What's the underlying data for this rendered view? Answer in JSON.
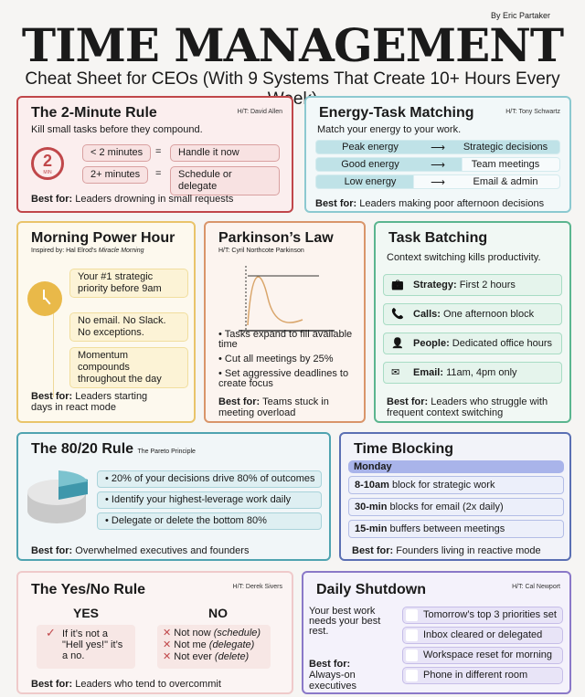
{
  "header": {
    "byline": "By Eric Partaker",
    "title": "TIME MANAGEMENT",
    "subtitle": "Cheat Sheet for CEOs (With 9 Systems That Create 10+ Hours Every Week)"
  },
  "best_for_label": "Best for:",
  "two_minute": {
    "title": "The 2-Minute Rule",
    "ht": "H/T: David Allen",
    "tagline": "Kill small tasks before they compound.",
    "icon_text": "2",
    "icon_sub": "MIN",
    "rows": [
      {
        "left": "< 2 minutes",
        "eq": "=",
        "right": "Handle it now"
      },
      {
        "left": "2+ minutes",
        "eq": "=",
        "right": "Schedule or delegate"
      }
    ],
    "best": "Leaders drowning in small requests",
    "color": "#c0474a"
  },
  "energy": {
    "title": "Energy-Task Matching",
    "ht": "H/T: Tony Schwartz",
    "tagline": "Match your energy to your work.",
    "arrow": "⟶",
    "rows": [
      {
        "energy": "Peak energy",
        "task": "Strategic decisions",
        "level": 1
      },
      {
        "energy": "Good energy",
        "task": "Team meetings",
        "level": 0.6
      },
      {
        "energy": "Low energy",
        "task": "Email & admin",
        "level": 0.4
      }
    ],
    "best": "Leaders making poor afternoon decisions",
    "color": "#8cc9d0"
  },
  "morning": {
    "title": "Morning Power Hour",
    "inspired": "Inspired by: Hal Elrod's ",
    "inspired_book": "Miracle Morning",
    "items": [
      "Your #1 strategic priority before 9am",
      "No email. No Slack. No exceptions.",
      "Momentum compounds throughout the day"
    ],
    "best": "Leaders starting days in react mode",
    "color": "#e9c46a"
  },
  "parkinson": {
    "title": "Parkinson’s Law",
    "ht": "H/T: Cyril Northcote Parkinson",
    "bullets": [
      "Tasks expand to fill available time",
      "Cut all meetings by 25%",
      "Set aggressive deadlines to create focus"
    ],
    "best": "Teams stuck in meeting overload",
    "color": "#d9956a"
  },
  "batching": {
    "title": "Task Batching",
    "tagline": "Context switching kills productivity.",
    "items": [
      {
        "icon": "briefcase-icon",
        "glyph": "💼",
        "label": "Strategy:",
        "text": "First 2 hours"
      },
      {
        "icon": "phone-icon",
        "glyph": "📞",
        "label": "Calls:",
        "text": "One afternoon block"
      },
      {
        "icon": "person-icon",
        "glyph": "👤",
        "label": "People:",
        "text": "Dedicated office hours"
      },
      {
        "icon": "envelope-icon",
        "glyph": "✉",
        "label": "Email:",
        "text": "11am, 4pm only"
      }
    ],
    "best": "Leaders who struggle with frequent context switching",
    "color": "#5bb58f"
  },
  "pareto": {
    "title": "The 80/20 Rule",
    "subtitle": "The Pareto Principle",
    "bullets": [
      "20% of your decisions drive 80% of outcomes",
      "Identify your highest-leverage work daily",
      "Delegate or delete the bottom 80%"
    ],
    "best": "Overwhelmed executives and founders",
    "slice_percent": 20,
    "color": "#4fa3b0"
  },
  "blocking": {
    "title": "Time Blocking",
    "day": "Monday",
    "blocks": [
      {
        "bold": "8-10am",
        "text": " block for strategic work"
      },
      {
        "bold": "30-min",
        "text": " blocks for email (2x daily)"
      },
      {
        "bold": "15-min",
        "text": " buffers between meetings"
      }
    ],
    "best": "Founders living in reactive mode",
    "color": "#5a6fb3"
  },
  "yesno": {
    "title": "The Yes/No Rule",
    "ht": "H/T: Derek Sivers",
    "yes_label": "YES",
    "no_label": "NO",
    "yes_text": "If it’s not a \"Hell yes!\" it’s a no.",
    "no_items": [
      {
        "text": "Not now ",
        "note": "(schedule)"
      },
      {
        "text": "Not me ",
        "note": "(delegate)"
      },
      {
        "text": "Not ever ",
        "note": "(delete)"
      }
    ],
    "best": "Leaders who tend to overcommit",
    "color": "#e9b8b8"
  },
  "shutdown": {
    "title": "Daily Shutdown",
    "ht": "H/T: Cal Newport",
    "tagline": "Your best work needs your best rest.",
    "best": "Always-on executives",
    "checklist": [
      {
        "label": "Tomorrow’s top 3 priorities set",
        "checked": false
      },
      {
        "label": "Inbox cleared or delegated",
        "checked": false
      },
      {
        "label": "Workspace reset for morning",
        "checked": false
      },
      {
        "label": "Phone in different room",
        "checked": false
      }
    ],
    "color": "#8a78c8"
  }
}
